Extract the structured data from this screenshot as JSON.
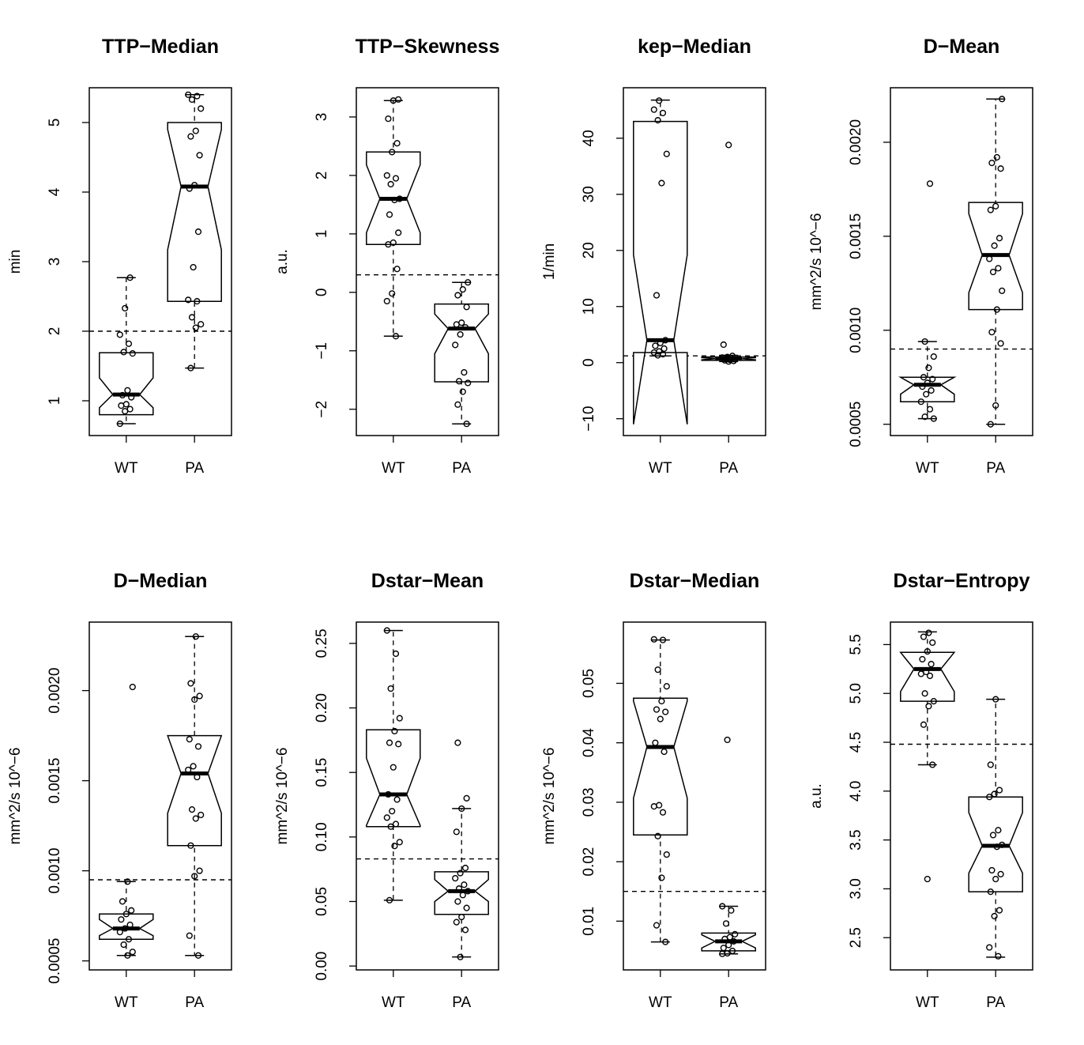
{
  "chart_data": [
    {
      "type": "box",
      "title": "TTP−Median",
      "ylabel": "min",
      "categories": [
        "WT",
        "PA"
      ],
      "ylim": [
        0.5,
        5.5
      ],
      "yticks": [
        1,
        2,
        3,
        4,
        5
      ],
      "ytick_labels": [
        "1",
        "2",
        "3",
        "4",
        "5"
      ],
      "threshold": 2.0,
      "boxes": [
        {
          "whisker_low": 0.67,
          "q1": 0.8,
          "median": 1.09,
          "q3": 1.69,
          "whisker_high": 2.77,
          "notch_low": 0.9,
          "notch_high": 1.33
        },
        {
          "whisker_low": 1.47,
          "q1": 2.43,
          "median": 4.08,
          "q3": 5.0,
          "whisker_high": 5.4,
          "notch_low": 3.17,
          "notch_high": 4.9
        }
      ],
      "points": [
        [
          0.67,
          0.85,
          0.88,
          0.93,
          0.95,
          1.05,
          1.08,
          1.15,
          1.68,
          1.7,
          1.82,
          1.95,
          2.33,
          2.77
        ],
        [
          1.47,
          2.05,
          2.1,
          2.2,
          2.43,
          2.45,
          2.92,
          3.43,
          4.05,
          4.1,
          4.53,
          4.8,
          4.88,
          5.2,
          5.33,
          5.38,
          5.4
        ]
      ]
    },
    {
      "type": "box",
      "title": "TTP−Skewness",
      "ylabel": "a.u.",
      "categories": [
        "WT",
        "PA"
      ],
      "ylim": [
        -2.45,
        3.5
      ],
      "yticks": [
        -2,
        -1,
        0,
        1,
        2,
        3
      ],
      "ytick_labels": [
        "−2",
        "−1",
        "0",
        "1",
        "2",
        "3"
      ],
      "threshold": 0.3,
      "boxes": [
        {
          "whisker_low": -0.75,
          "q1": 0.82,
          "median": 1.6,
          "q3": 2.4,
          "whisker_high": 3.28,
          "notch_low": 1.02,
          "notch_high": 2.18
        },
        {
          "whisker_low": -2.25,
          "q1": -1.53,
          "median": -0.62,
          "q3": -0.2,
          "whisker_high": 0.17,
          "notch_low": -1.05,
          "notch_high": -0.37
        }
      ],
      "points": [
        [
          -0.75,
          -0.15,
          -0.02,
          0.4,
          0.82,
          0.85,
          1.02,
          1.33,
          1.58,
          1.6,
          1.85,
          1.95,
          2.0,
          2.4,
          2.55,
          2.97,
          3.28,
          3.3
        ],
        [
          -2.25,
          -1.92,
          -1.7,
          -1.55,
          -1.52,
          -1.37,
          -0.9,
          -0.72,
          -0.6,
          -0.55,
          -0.52,
          -0.25,
          -0.05,
          0.05,
          0.17
        ]
      ]
    },
    {
      "type": "box",
      "title": "kep−Median",
      "ylabel": "1/min",
      "categories": [
        "WT",
        "PA"
      ],
      "ylim": [
        -13,
        49
      ],
      "yticks": [
        -10,
        0,
        10,
        20,
        30,
        40
      ],
      "ytick_labels": [
        "−10",
        "0",
        "10",
        "20",
        "30",
        "40"
      ],
      "threshold": 1.2,
      "boxes": [
        {
          "whisker_low": 1.2,
          "q1": 1.8,
          "median": 4.0,
          "q3": 43.0,
          "whisker_high": 46.8,
          "notch_low": -11.0,
          "notch_high": 19.2
        },
        {
          "whisker_low": 0.2,
          "q1": 0.4,
          "median": 0.7,
          "q3": 1.0,
          "whisker_high": 1.3,
          "notch_low": 0.5,
          "notch_high": 0.9
        }
      ],
      "points": [
        [
          1.3,
          1.5,
          1.8,
          2.0,
          2.5,
          3.0,
          3.5,
          4.0,
          12.0,
          32.0,
          37.2,
          43.2,
          44.5,
          45.1,
          46.7
        ],
        [
          0.2,
          0.3,
          0.4,
          0.5,
          0.6,
          0.7,
          0.8,
          0.9,
          1.0,
          1.2,
          3.2,
          38.8
        ]
      ]
    },
    {
      "type": "box",
      "title": "D−Mean",
      "ylabel": "mm^2/s 10^−6",
      "categories": [
        "WT",
        "PA"
      ],
      "ylim": [
        0.00044,
        0.00229
      ],
      "yticks": [
        0.0005,
        0.001,
        0.0015,
        0.002
      ],
      "ytick_labels": [
        "0.0005",
        "0.0010",
        "0.0015",
        "0.0020"
      ],
      "threshold": 0.0009,
      "boxes": [
        {
          "whisker_low": 0.00053,
          "q1": 0.00062,
          "median": 0.00071,
          "q3": 0.00075,
          "whisker_high": 0.00094,
          "notch_low": 0.00066,
          "notch_high": 0.00075
        },
        {
          "whisker_low": 0.0005,
          "q1": 0.00111,
          "median": 0.0014,
          "q3": 0.00168,
          "whisker_high": 0.00223,
          "notch_low": 0.0012,
          "notch_high": 0.00162
        }
      ],
      "points": [
        [
          0.00053,
          0.00054,
          0.00058,
          0.00062,
          0.00066,
          0.00068,
          0.0007,
          0.00072,
          0.00074,
          0.00075,
          0.0008,
          0.00086,
          0.00094,
          0.00178
        ],
        [
          0.0005,
          0.0006,
          0.00093,
          0.00099,
          0.00111,
          0.00121,
          0.00131,
          0.00133,
          0.00138,
          0.00145,
          0.00149,
          0.00164,
          0.00166,
          0.00186,
          0.00189,
          0.00192,
          0.00223
        ]
      ]
    },
    {
      "type": "box",
      "title": "D−Median",
      "ylabel": "mm^2/s 10^−6",
      "categories": [
        "WT",
        "PA"
      ],
      "ylim": [
        0.00045,
        0.00238
      ],
      "yticks": [
        0.0005,
        0.001,
        0.0015,
        0.002
      ],
      "ytick_labels": [
        "0.0005",
        "0.0010",
        "0.0015",
        "0.0020"
      ],
      "threshold": 0.00095,
      "boxes": [
        {
          "whisker_low": 0.00053,
          "q1": 0.00062,
          "median": 0.00068,
          "q3": 0.00076,
          "whisker_high": 0.00094,
          "notch_low": 0.00064,
          "notch_high": 0.00073
        },
        {
          "whisker_low": 0.00053,
          "q1": 0.00114,
          "median": 0.00154,
          "q3": 0.00175,
          "whisker_high": 0.0023,
          "notch_low": 0.00132,
          "notch_high": 0.00175
        }
      ],
      "points": [
        [
          0.00053,
          0.00055,
          0.00059,
          0.00062,
          0.00066,
          0.00068,
          0.0007,
          0.00073,
          0.00076,
          0.00078,
          0.00083,
          0.00094,
          0.00202
        ],
        [
          0.00053,
          0.00064,
          0.00097,
          0.001,
          0.00114,
          0.00129,
          0.00131,
          0.00134,
          0.00152,
          0.00156,
          0.00158,
          0.00169,
          0.00173,
          0.00195,
          0.00197,
          0.00204,
          0.0023
        ]
      ]
    },
    {
      "type": "box",
      "title": "Dstar−Mean",
      "ylabel": "mm^2/s 10^−6",
      "categories": [
        "WT",
        "PA"
      ],
      "ylim": [
        -0.003,
        0.2665
      ],
      "yticks": [
        0.0,
        0.05,
        0.1,
        0.15,
        0.2,
        0.25
      ],
      "ytick_labels": [
        "0.00",
        "0.05",
        "0.10",
        "0.15",
        "0.20",
        "0.25"
      ],
      "threshold": 0.083,
      "boxes": [
        {
          "whisker_low": 0.051,
          "q1": 0.108,
          "median": 0.133,
          "q3": 0.183,
          "whisker_high": 0.26,
          "notch_low": 0.109,
          "notch_high": 0.161
        },
        {
          "whisker_low": 0.007,
          "q1": 0.04,
          "median": 0.058,
          "q3": 0.073,
          "whisker_high": 0.122,
          "notch_low": 0.05,
          "notch_high": 0.067
        }
      ],
      "points": [
        [
          0.051,
          0.093,
          0.096,
          0.108,
          0.11,
          0.115,
          0.12,
          0.129,
          0.133,
          0.154,
          0.172,
          0.173,
          0.182,
          0.192,
          0.215,
          0.242,
          0.26
        ],
        [
          0.007,
          0.028,
          0.034,
          0.038,
          0.045,
          0.05,
          0.055,
          0.058,
          0.06,
          0.063,
          0.068,
          0.072,
          0.076,
          0.104,
          0.122,
          0.13,
          0.173
        ]
      ]
    },
    {
      "type": "box",
      "title": "Dstar−Median",
      "ylabel": "mm^2/s 10^−6",
      "categories": [
        "WT",
        "PA"
      ],
      "ylim": [
        0.0018,
        0.0603
      ],
      "yticks": [
        0.01,
        0.02,
        0.03,
        0.04,
        0.05
      ],
      "ytick_labels": [
        "0.01",
        "0.02",
        "0.03",
        "0.04",
        "0.05"
      ],
      "threshold": 0.015,
      "boxes": [
        {
          "whisker_low": 0.0065,
          "q1": 0.0245,
          "median": 0.0393,
          "q3": 0.0475,
          "whisker_high": 0.0573,
          "notch_low": 0.0307,
          "notch_high": 0.047
        },
        {
          "whisker_low": 0.0045,
          "q1": 0.005,
          "median": 0.0066,
          "q3": 0.008,
          "whisker_high": 0.0125,
          "notch_low": 0.0055,
          "notch_high": 0.0077
        }
      ],
      "points": [
        [
          0.0065,
          0.0093,
          0.0173,
          0.0212,
          0.0243,
          0.0283,
          0.0293,
          0.0295,
          0.0385,
          0.04,
          0.044,
          0.0452,
          0.0456,
          0.047,
          0.0495,
          0.0523,
          0.0573,
          0.0574
        ],
        [
          0.0045,
          0.0046,
          0.005,
          0.0055,
          0.006,
          0.0066,
          0.007,
          0.0073,
          0.0078,
          0.0096,
          0.0118,
          0.0125,
          0.0405
        ]
      ]
    },
    {
      "type": "box",
      "title": "Dstar−Entropy",
      "ylabel": "a.u.",
      "categories": [
        "WT",
        "PA"
      ],
      "ylim": [
        2.17,
        5.73
      ],
      "yticks": [
        2.5,
        3.0,
        3.5,
        4.0,
        4.5,
        5.0,
        5.5
      ],
      "ytick_labels": [
        "2.5",
        "3.0",
        "3.5",
        "4.0",
        "4.5",
        "5.0",
        "5.5"
      ],
      "threshold": 4.48,
      "boxes": [
        {
          "whisker_low": 4.27,
          "q1": 4.92,
          "median": 5.25,
          "q3": 5.42,
          "whisker_high": 5.63,
          "notch_low": 5.02,
          "notch_high": 5.42
        },
        {
          "whisker_low": 2.3,
          "q1": 2.97,
          "median": 3.44,
          "q3": 3.94,
          "whisker_high": 4.94,
          "notch_low": 3.16,
          "notch_high": 3.78
        }
      ],
      "points": [
        [
          3.1,
          4.27,
          4.68,
          4.87,
          4.92,
          5.0,
          5.18,
          5.2,
          5.22,
          5.3,
          5.35,
          5.43,
          5.52,
          5.58,
          5.62
        ],
        [
          2.31,
          2.4,
          2.72,
          2.78,
          2.97,
          3.1,
          3.15,
          3.19,
          3.43,
          3.45,
          3.55,
          3.6,
          3.94,
          3.97,
          4.01,
          4.27,
          4.94
        ]
      ]
    }
  ]
}
